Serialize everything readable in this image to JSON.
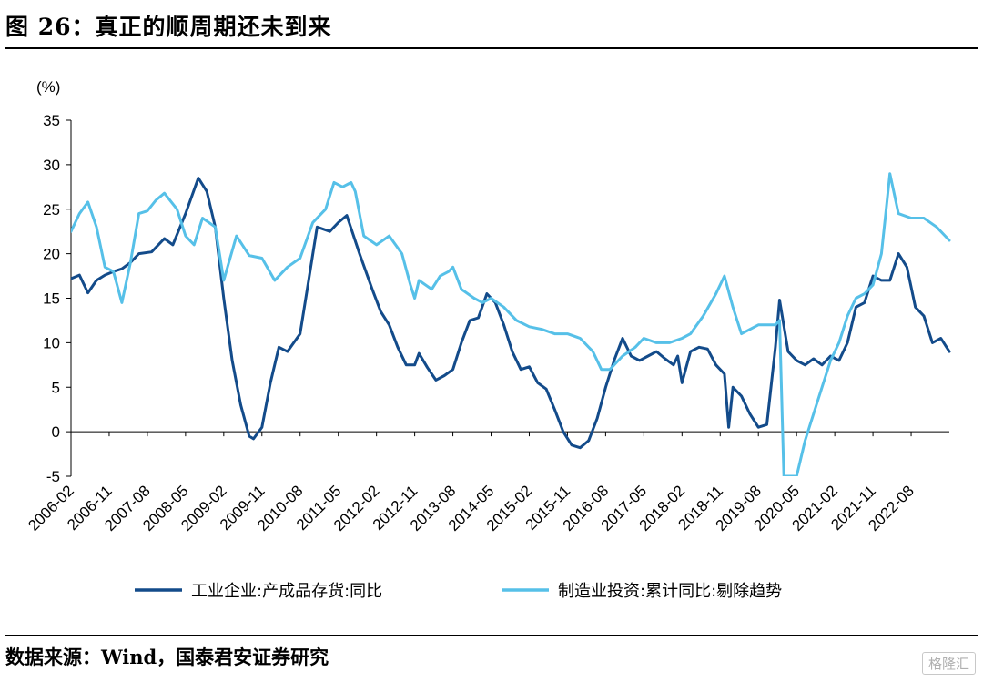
{
  "header": {
    "title": "图 26：真正的顺周期还未到来"
  },
  "footer": {
    "source": "数据来源：Wind，国泰君安证券研究",
    "watermark": "格隆汇"
  },
  "chart_data": {
    "type": "line",
    "yunit": "(%)",
    "ylim": [
      -5,
      35
    ],
    "yticks": [
      35,
      30,
      25,
      20,
      15,
      10,
      5,
      0,
      -5
    ],
    "x_start": "2006-02",
    "x_end": "2023-05",
    "xticks": [
      "2006-02",
      "2006-11",
      "2007-08",
      "2008-05",
      "2009-02",
      "2009-11",
      "2010-08",
      "2011-05",
      "2012-02",
      "2012-11",
      "2013-08",
      "2014-05",
      "2015-02",
      "2015-11",
      "2016-08",
      "2017-05",
      "2018-02",
      "2018-11",
      "2019-08",
      "2020-05",
      "2021-02",
      "2021-11",
      "2022-08"
    ],
    "legend_position": "bottom",
    "series": [
      {
        "name": "工业企业:产成品存货:同比",
        "color": "#134b8a",
        "points": [
          [
            "2006-02",
            17.2
          ],
          [
            "2006-04",
            17.6
          ],
          [
            "2006-06",
            15.6
          ],
          [
            "2006-08",
            17.0
          ],
          [
            "2006-10",
            17.6
          ],
          [
            "2006-12",
            18.0
          ],
          [
            "2007-02",
            18.3
          ],
          [
            "2007-04",
            19.0
          ],
          [
            "2007-06",
            20.0
          ],
          [
            "2007-09",
            20.2
          ],
          [
            "2007-12",
            21.7
          ],
          [
            "2008-02",
            21.0
          ],
          [
            "2008-05",
            24.5
          ],
          [
            "2008-08",
            28.5
          ],
          [
            "2008-10",
            27.0
          ],
          [
            "2008-12",
            23.0
          ],
          [
            "2009-02",
            15.0
          ],
          [
            "2009-04",
            8.0
          ],
          [
            "2009-06",
            3.0
          ],
          [
            "2009-08",
            -0.5
          ],
          [
            "2009-09",
            -0.8
          ],
          [
            "2009-11",
            0.5
          ],
          [
            "2010-01",
            5.5
          ],
          [
            "2010-03",
            9.5
          ],
          [
            "2010-05",
            9.0
          ],
          [
            "2010-08",
            11.0
          ],
          [
            "2010-10",
            17.0
          ],
          [
            "2010-12",
            23.0
          ],
          [
            "2011-03",
            22.5
          ],
          [
            "2011-05",
            23.5
          ],
          [
            "2011-07",
            24.3
          ],
          [
            "2011-10",
            20.0
          ],
          [
            "2012-01",
            16.0
          ],
          [
            "2012-03",
            13.5
          ],
          [
            "2012-05",
            12.0
          ],
          [
            "2012-07",
            9.5
          ],
          [
            "2012-09",
            7.5
          ],
          [
            "2012-11",
            7.5
          ],
          [
            "2012-12",
            8.8
          ],
          [
            "2013-02",
            7.2
          ],
          [
            "2013-04",
            5.8
          ],
          [
            "2013-06",
            6.3
          ],
          [
            "2013-08",
            7.0
          ],
          [
            "2013-10",
            10.0
          ],
          [
            "2013-12",
            12.5
          ],
          [
            "2014-02",
            12.8
          ],
          [
            "2014-04",
            15.5
          ],
          [
            "2014-06",
            14.5
          ],
          [
            "2014-08",
            12.0
          ],
          [
            "2014-10",
            9.0
          ],
          [
            "2014-12",
            7.0
          ],
          [
            "2015-02",
            7.3
          ],
          [
            "2015-04",
            5.5
          ],
          [
            "2015-06",
            4.8
          ],
          [
            "2015-08",
            2.5
          ],
          [
            "2015-10",
            0.0
          ],
          [
            "2015-12",
            -1.5
          ],
          [
            "2016-02",
            -1.8
          ],
          [
            "2016-04",
            -1.0
          ],
          [
            "2016-06",
            1.5
          ],
          [
            "2016-08",
            5.0
          ],
          [
            "2016-10",
            8.0
          ],
          [
            "2016-12",
            10.5
          ],
          [
            "2017-02",
            8.5
          ],
          [
            "2017-04",
            8.0
          ],
          [
            "2017-06",
            8.5
          ],
          [
            "2017-08",
            9.0
          ],
          [
            "2017-10",
            8.2
          ],
          [
            "2017-12",
            7.5
          ],
          [
            "2018-01",
            8.5
          ],
          [
            "2018-02",
            5.5
          ],
          [
            "2018-04",
            9.0
          ],
          [
            "2018-06",
            9.5
          ],
          [
            "2018-08",
            9.3
          ],
          [
            "2018-10",
            7.5
          ],
          [
            "2018-12",
            6.5
          ],
          [
            "2019-01",
            0.5
          ],
          [
            "2019-02",
            5.0
          ],
          [
            "2019-04",
            4.0
          ],
          [
            "2019-06",
            2.0
          ],
          [
            "2019-08",
            0.5
          ],
          [
            "2019-10",
            0.8
          ],
          [
            "2019-12",
            9.5
          ],
          [
            "2020-01",
            14.8
          ],
          [
            "2020-03",
            9.0
          ],
          [
            "2020-05",
            8.0
          ],
          [
            "2020-07",
            7.5
          ],
          [
            "2020-09",
            8.2
          ],
          [
            "2020-11",
            7.5
          ],
          [
            "2021-01",
            8.5
          ],
          [
            "2021-03",
            8.0
          ],
          [
            "2021-05",
            10.0
          ],
          [
            "2021-07",
            14.0
          ],
          [
            "2021-09",
            14.5
          ],
          [
            "2021-11",
            17.5
          ],
          [
            "2022-01",
            17.0
          ],
          [
            "2022-03",
            17.0
          ],
          [
            "2022-05",
            20.0
          ],
          [
            "2022-07",
            18.5
          ],
          [
            "2022-09",
            14.0
          ],
          [
            "2022-11",
            13.0
          ],
          [
            "2023-01",
            10.0
          ],
          [
            "2023-03",
            10.5
          ],
          [
            "2023-05",
            9.0
          ]
        ]
      },
      {
        "name": "制造业投资:累计同比:剔除趋势",
        "color": "#56c0e8",
        "points": [
          [
            "2006-02",
            22.5
          ],
          [
            "2006-04",
            24.5
          ],
          [
            "2006-06",
            25.8
          ],
          [
            "2006-08",
            23.0
          ],
          [
            "2006-10",
            18.5
          ],
          [
            "2006-12",
            18.0
          ],
          [
            "2007-02",
            14.5
          ],
          [
            "2007-04",
            19.0
          ],
          [
            "2007-06",
            24.5
          ],
          [
            "2007-08",
            24.8
          ],
          [
            "2007-10",
            26.0
          ],
          [
            "2007-12",
            26.8
          ],
          [
            "2008-03",
            25.0
          ],
          [
            "2008-05",
            22.0
          ],
          [
            "2008-07",
            21.0
          ],
          [
            "2008-09",
            24.0
          ],
          [
            "2008-12",
            23.0
          ],
          [
            "2009-02",
            17.0
          ],
          [
            "2009-05",
            22.0
          ],
          [
            "2009-08",
            19.8
          ],
          [
            "2009-11",
            19.5
          ],
          [
            "2010-02",
            17.0
          ],
          [
            "2010-05",
            18.5
          ],
          [
            "2010-08",
            19.5
          ],
          [
            "2010-11",
            23.5
          ],
          [
            "2011-02",
            25.0
          ],
          [
            "2011-04",
            28.0
          ],
          [
            "2011-06",
            27.5
          ],
          [
            "2011-08",
            28.0
          ],
          [
            "2011-09",
            27.0
          ],
          [
            "2011-11",
            22.0
          ],
          [
            "2012-02",
            21.0
          ],
          [
            "2012-05",
            22.0
          ],
          [
            "2012-08",
            20.0
          ],
          [
            "2012-10",
            16.5
          ],
          [
            "2012-11",
            15.0
          ],
          [
            "2012-12",
            17.0
          ],
          [
            "2013-03",
            16.0
          ],
          [
            "2013-05",
            17.5
          ],
          [
            "2013-07",
            18.0
          ],
          [
            "2013-08",
            18.5
          ],
          [
            "2013-10",
            16.0
          ],
          [
            "2014-01",
            15.0
          ],
          [
            "2014-03",
            14.5
          ],
          [
            "2014-05",
            15.0
          ],
          [
            "2014-08",
            14.0
          ],
          [
            "2014-11",
            12.5
          ],
          [
            "2015-02",
            11.8
          ],
          [
            "2015-05",
            11.5
          ],
          [
            "2015-08",
            11.0
          ],
          [
            "2015-11",
            11.0
          ],
          [
            "2016-02",
            10.5
          ],
          [
            "2016-05",
            9.0
          ],
          [
            "2016-07",
            7.0
          ],
          [
            "2016-09",
            7.0
          ],
          [
            "2016-12",
            8.5
          ],
          [
            "2017-03",
            9.5
          ],
          [
            "2017-05",
            10.5
          ],
          [
            "2017-08",
            10.0
          ],
          [
            "2017-11",
            10.0
          ],
          [
            "2018-02",
            10.5
          ],
          [
            "2018-04",
            11.0
          ],
          [
            "2018-07",
            13.0
          ],
          [
            "2018-10",
            15.5
          ],
          [
            "2018-12",
            17.5
          ],
          [
            "2019-02",
            14.0
          ],
          [
            "2019-04",
            11.0
          ],
          [
            "2019-06",
            11.5
          ],
          [
            "2019-08",
            12.0
          ],
          [
            "2019-10",
            12.0
          ],
          [
            "2019-12",
            12.0
          ],
          [
            "2020-01",
            12.5
          ],
          [
            "2020-02",
            -5.0
          ],
          [
            "2020-05",
            -5.0
          ],
          [
            "2020-07",
            -1.0
          ],
          [
            "2020-09",
            2.0
          ],
          [
            "2020-11",
            5.0
          ],
          [
            "2021-01",
            8.0
          ],
          [
            "2021-03",
            10.0
          ],
          [
            "2021-05",
            13.0
          ],
          [
            "2021-07",
            15.0
          ],
          [
            "2021-09",
            15.5
          ],
          [
            "2021-11",
            16.5
          ],
          [
            "2022-01",
            20.0
          ],
          [
            "2022-02",
            24.5
          ],
          [
            "2022-03",
            29.0
          ],
          [
            "2022-05",
            24.5
          ],
          [
            "2022-08",
            24.0
          ],
          [
            "2022-11",
            24.0
          ],
          [
            "2023-02",
            23.0
          ],
          [
            "2023-05",
            21.5
          ]
        ]
      }
    ]
  }
}
